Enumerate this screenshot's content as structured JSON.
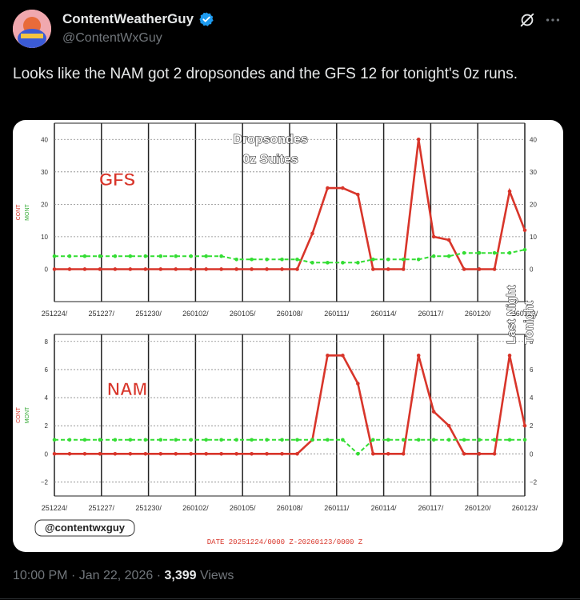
{
  "author": {
    "display_name": "ContentWeatherGuy",
    "handle": "@ContentWxGuy",
    "verified_icon": "verified-badge-icon"
  },
  "tweet": {
    "text": "Looks like the NAM got 2 dropsondes and the GFS 12 for tonight's 0z runs."
  },
  "meta": {
    "time": "10:00 PM",
    "sep1": "·",
    "date": "Jan 22, 2026",
    "sep2": "·",
    "views_count": "3,399",
    "views_label": "Views"
  },
  "colors": {
    "background": "#000000",
    "text": "#e7e9ea",
    "secondary": "#71767b",
    "verified": "#1d9bf0",
    "series_red": "#d8352a",
    "series_green": "#33dd33"
  },
  "chart_data": [
    {
      "type": "line",
      "title": "Dropsondes\n0z Suites",
      "title_lines": [
        "Dropsondes",
        "0z Suites"
      ],
      "model_label": "GFS",
      "ylabel_left": [
        "CONT",
        "MONT"
      ],
      "ylim": [
        -10,
        45
      ],
      "yticks": [
        0,
        10,
        20,
        30,
        40
      ],
      "x_tick_labels": [
        "251224/",
        "251227/",
        "251230/",
        "260102/",
        "260105/",
        "260108/",
        "260111/",
        "260114/",
        "260117/",
        "260120/",
        "260123/"
      ],
      "series": [
        {
          "color": "#d8352a",
          "values": [
            0,
            0,
            0,
            0,
            0,
            0,
            0,
            0,
            0,
            0,
            0,
            0,
            0,
            0,
            0,
            0,
            0,
            11,
            25,
            25,
            23,
            0,
            0,
            0,
            40,
            10,
            9,
            0,
            0,
            0,
            24,
            12
          ]
        },
        {
          "color": "#33dd33",
          "values": [
            4,
            4,
            4,
            4,
            4,
            4,
            4,
            4,
            4,
            4,
            4,
            4,
            3,
            3,
            3,
            3,
            3,
            2,
            2,
            2,
            2,
            3,
            3,
            3,
            3,
            4,
            4,
            5,
            5,
            5,
            5,
            6
          ]
        }
      ],
      "annotation": [
        "Last Night",
        "Tonight"
      ]
    },
    {
      "type": "line",
      "model_label": "NAM",
      "ylabel_left": [
        "CONT",
        "MONT"
      ],
      "ylim": [
        -3,
        8.5
      ],
      "yticks": [
        -2,
        0,
        2,
        4,
        6,
        8
      ],
      "x_tick_labels": [
        "251224/",
        "251227/",
        "251230/",
        "260102/",
        "260105/",
        "260108/",
        "260111/",
        "260114/",
        "260117/",
        "260120/",
        "260123/"
      ],
      "xlabel": "DATE 20251224/0000 Z-20260123/0000 Z",
      "series": [
        {
          "color": "#d8352a",
          "values": [
            0,
            0,
            0,
            0,
            0,
            0,
            0,
            0,
            0,
            0,
            0,
            0,
            0,
            0,
            0,
            0,
            0,
            1,
            7,
            7,
            5,
            0,
            0,
            0,
            7,
            3,
            2,
            0,
            0,
            0,
            7,
            2
          ]
        },
        {
          "color": "#33dd33",
          "values": [
            1,
            1,
            1,
            1,
            1,
            1,
            1,
            1,
            1,
            1,
            1,
            1,
            1,
            1,
            1,
            1,
            1,
            1,
            1,
            1,
            0,
            1,
            1,
            1,
            1,
            1,
            1,
            1,
            1,
            1,
            1,
            1
          ]
        }
      ],
      "watermark": "@contentwxguy"
    }
  ]
}
